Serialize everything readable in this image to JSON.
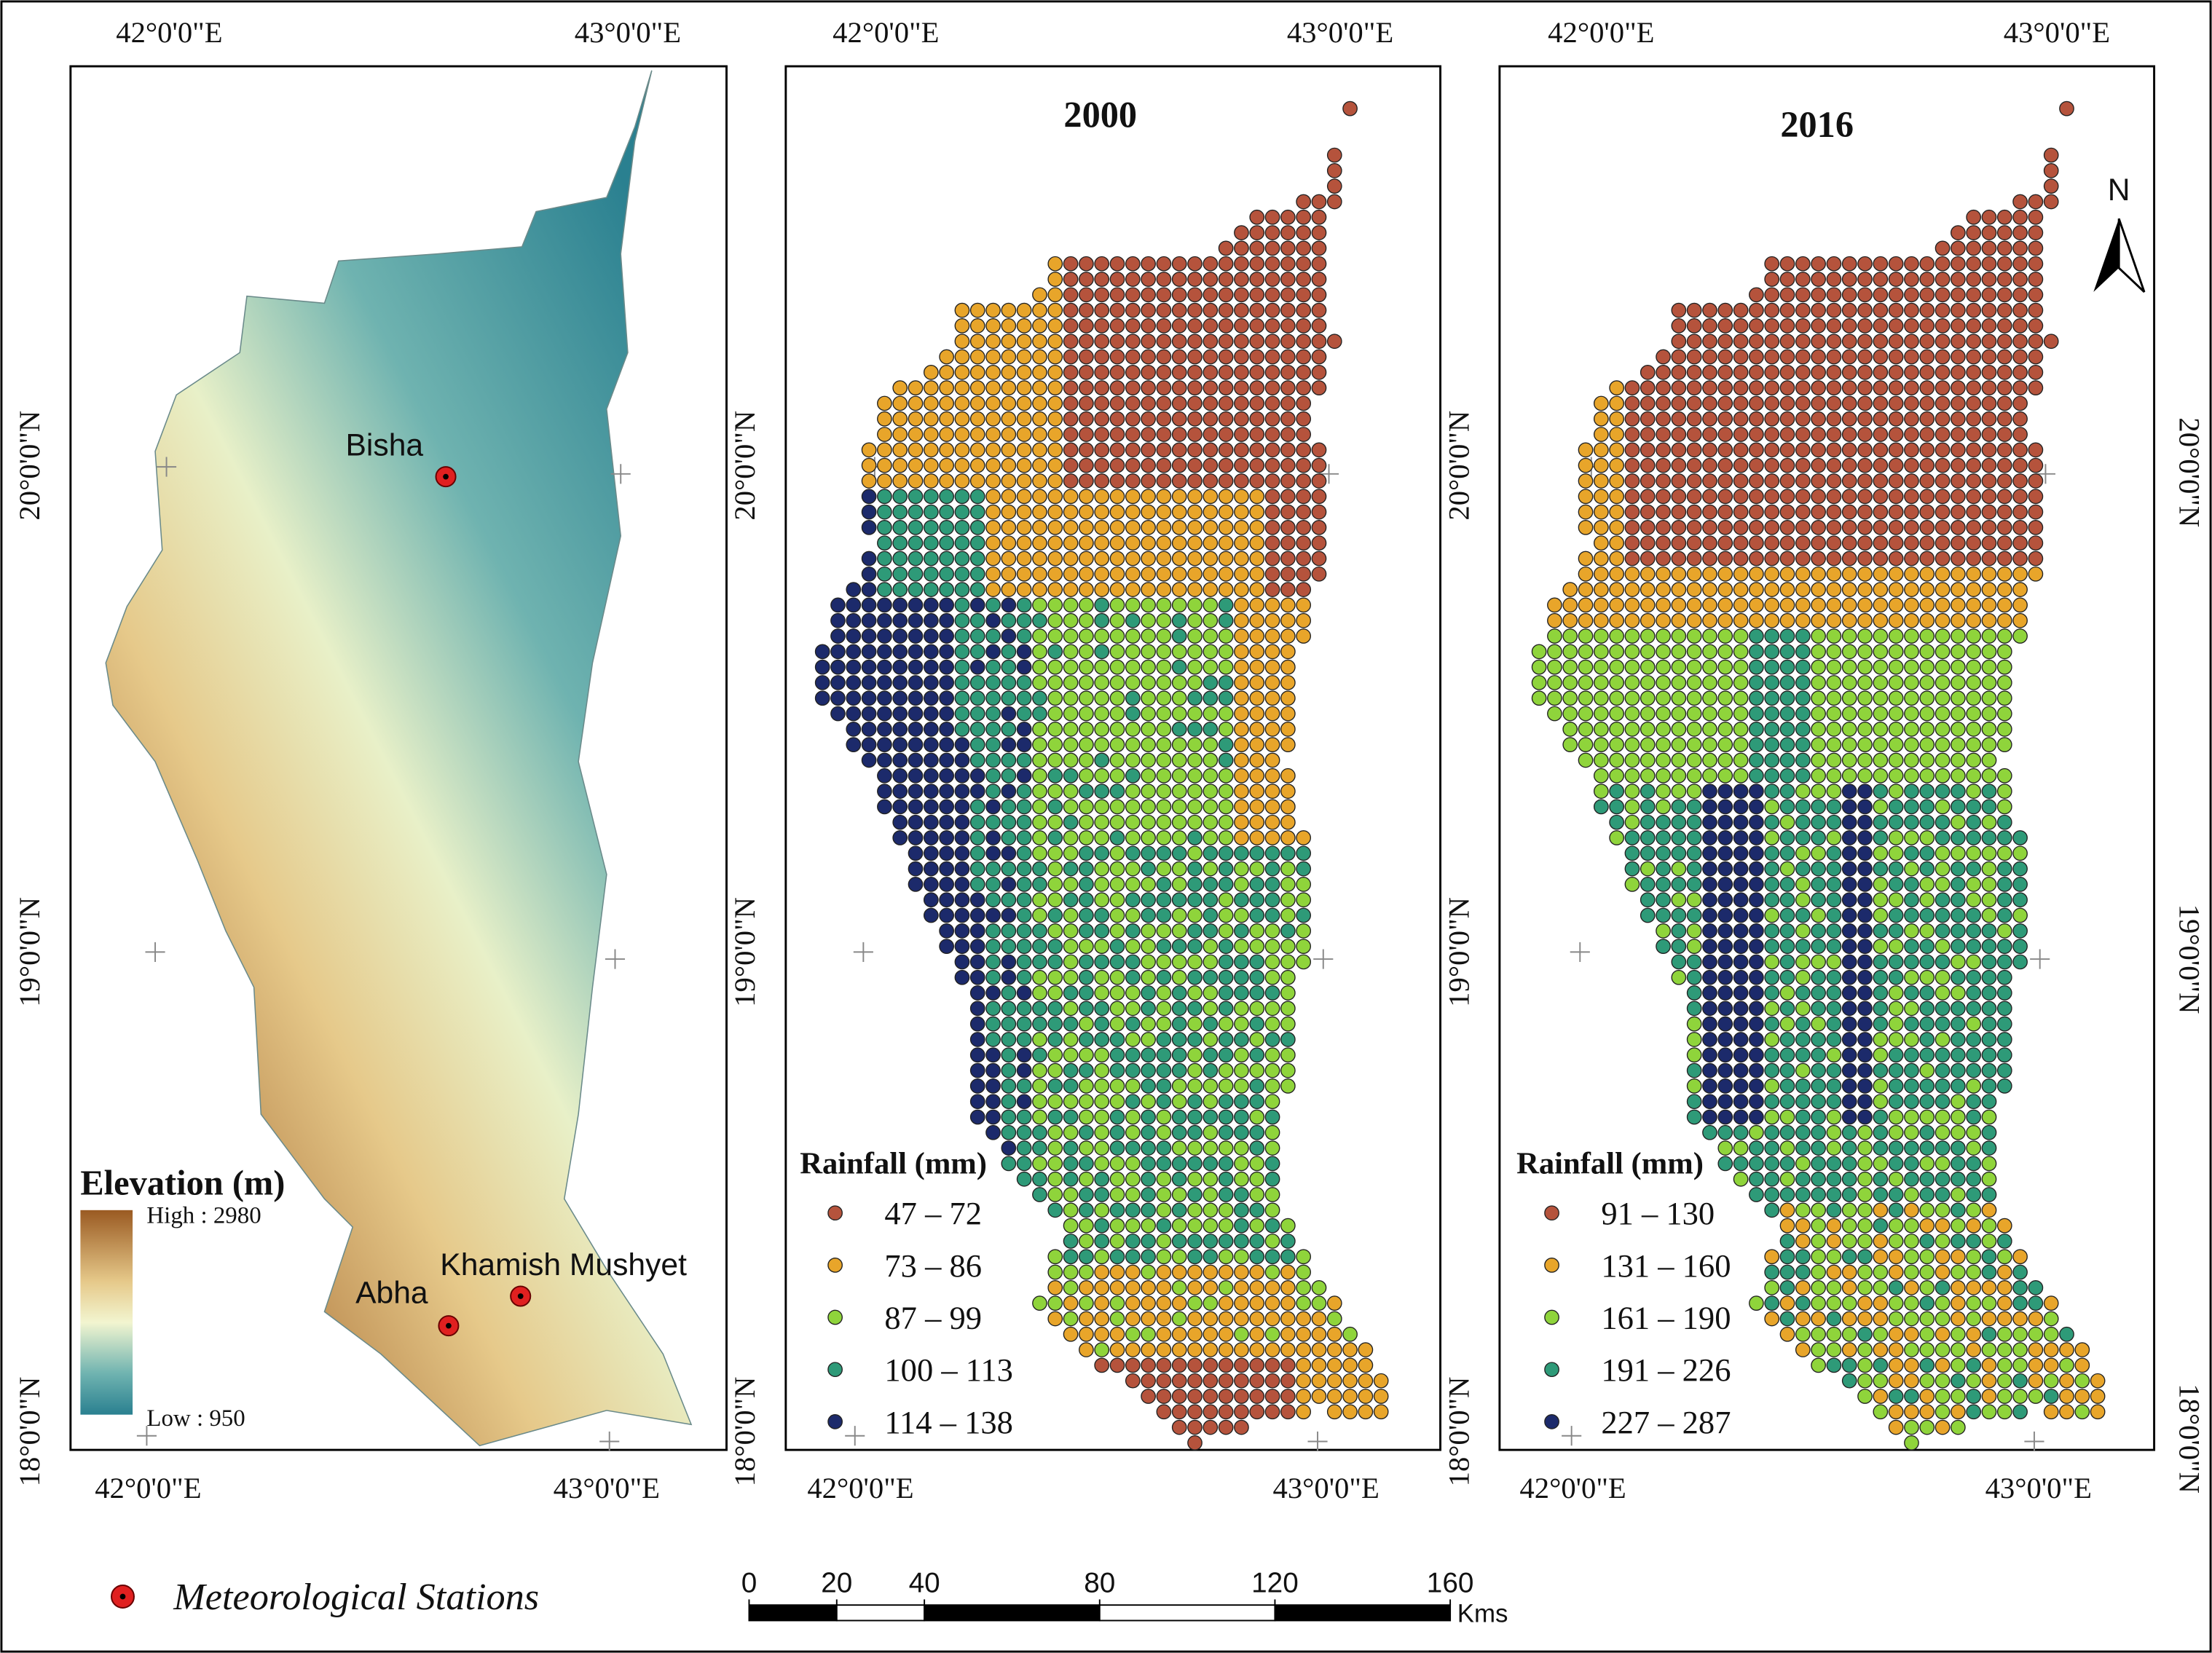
{
  "coordinates": {
    "longitude": [
      "42°0'0\"E",
      "43°0'0\"E"
    ],
    "latitude": [
      "20°0'0\"N",
      "19°0'0\"N",
      "18°0'0\"N"
    ]
  },
  "elevation_panel": {
    "legend_title": "Elevation (m)",
    "high": "High : 2980",
    "low": "Low : 950",
    "stations": [
      "Bisha",
      "Abha",
      "Khamish Mushyet"
    ]
  },
  "rainfall_panels": [
    {
      "title": "2000",
      "legend_title": "Rainfall (mm)",
      "classes": [
        {
          "label": "47 – 72",
          "color": "#b5533c"
        },
        {
          "label": "73 – 86",
          "color": "#e8a52a"
        },
        {
          "label": "87 – 99",
          "color": "#8fd43b"
        },
        {
          "label": "100 – 113",
          "color": "#2e9a78"
        },
        {
          "label": "114 – 138",
          "color": "#1c2a6b"
        }
      ]
    },
    {
      "title": "2016",
      "legend_title": "Rainfall (mm)",
      "classes": [
        {
          "label": "91 – 130",
          "color": "#b5533c"
        },
        {
          "label": "131 – 160",
          "color": "#e8a52a"
        },
        {
          "label": "161 – 190",
          "color": "#8fd43b"
        },
        {
          "label": "191 – 226",
          "color": "#2e9a78"
        },
        {
          "label": "227 – 287",
          "color": "#1c2a6b"
        }
      ]
    }
  ],
  "north_arrow": "N",
  "footer_legend": "Meteorological Stations",
  "scale_bar": {
    "ticks": [
      0,
      20,
      40,
      80,
      120,
      160
    ],
    "unit": "Kms"
  }
}
